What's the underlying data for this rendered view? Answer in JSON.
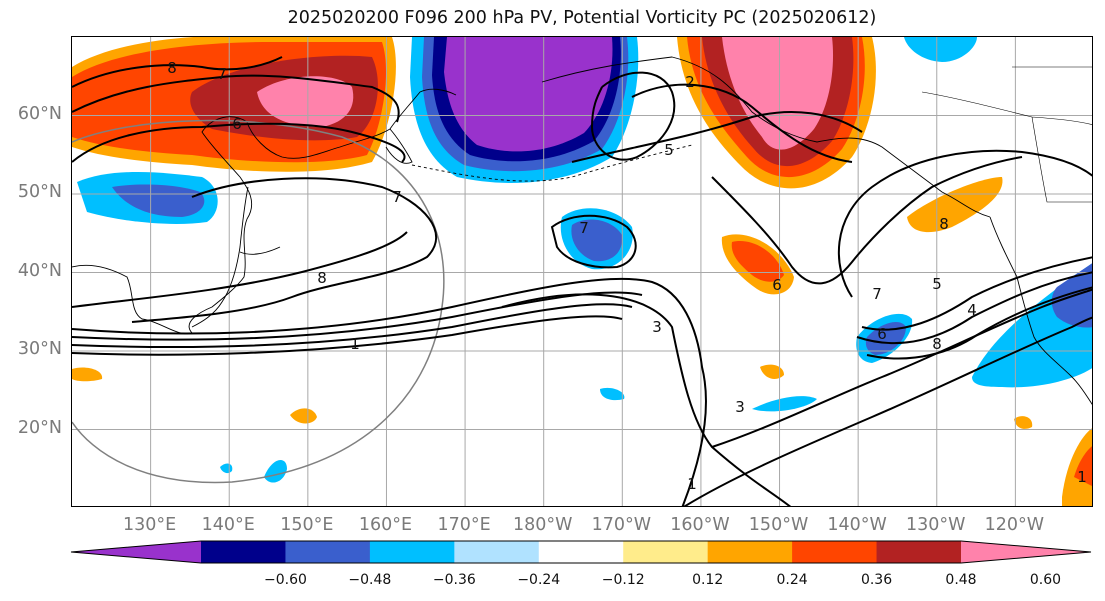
{
  "title": "2025020200 F096 200 hPa PV, Potential Vorticity PC (2025020612)",
  "lat_labels": [
    {
      "text": "60°N",
      "lat": 60
    },
    {
      "text": "50°N",
      "lat": 50
    },
    {
      "text": "40°N",
      "lat": 40
    },
    {
      "text": "30°N",
      "lat": 30
    },
    {
      "text": "20°N",
      "lat": 20
    }
  ],
  "lon_labels": [
    {
      "text": "130°E",
      "lon": 130
    },
    {
      "text": "140°E",
      "lon": 140
    },
    {
      "text": "150°E",
      "lon": 150
    },
    {
      "text": "160°E",
      "lon": 160
    },
    {
      "text": "170°E",
      "lon": 170
    },
    {
      "text": "180°W",
      "lon": 180
    },
    {
      "text": "170°W",
      "lon": 190
    },
    {
      "text": "160°W",
      "lon": 200
    },
    {
      "text": "150°W",
      "lon": 210
    },
    {
      "text": "140°W",
      "lon": 220
    },
    {
      "text": "130°W",
      "lon": 230
    },
    {
      "text": "120°W",
      "lon": 240
    }
  ],
  "map_extent": {
    "lon_min": 120,
    "lon_max": 250,
    "lat_min": 10,
    "lat_max": 70
  },
  "colorbar": {
    "ticks": [
      "−0.60",
      "−0.48",
      "−0.36",
      "−0.24",
      "−0.12",
      "0.12",
      "0.24",
      "0.36",
      "0.48",
      "0.60"
    ],
    "colors": [
      "#9932cc",
      "#00008b",
      "#3a5fcd",
      "#00bfff",
      "#b0e2ff",
      "#ffffff",
      "#ffec8b",
      "#ffa500",
      "#ff4500",
      "#b22222",
      "#ff82ab"
    ]
  },
  "contour_labels": [
    "8",
    "7",
    "6",
    "7",
    "8",
    "1",
    "3",
    "5",
    "7",
    "6",
    "8",
    "7",
    "5",
    "4",
    "8",
    "3",
    "2",
    "1",
    "6",
    "1"
  ]
}
